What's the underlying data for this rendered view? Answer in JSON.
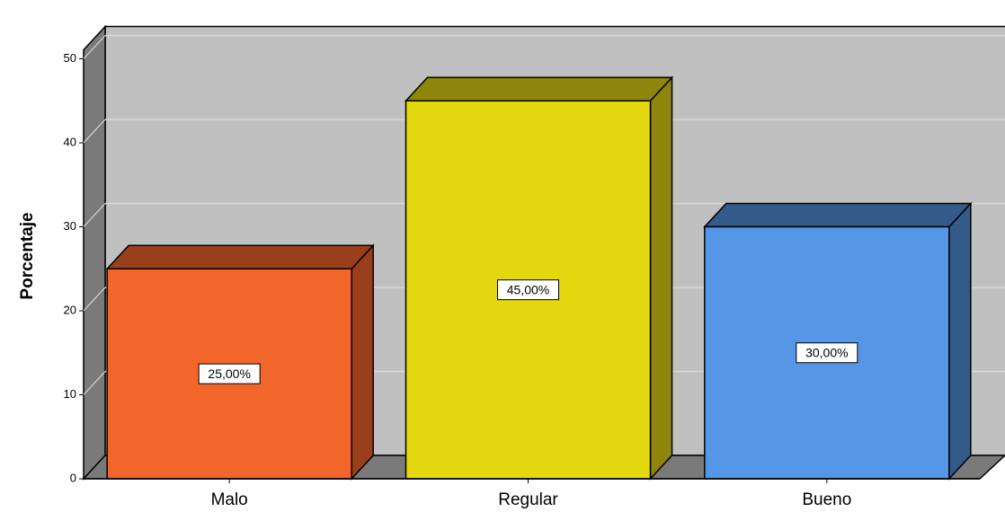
{
  "chart_data": {
    "type": "bar",
    "categories": [
      "Malo",
      "Regular",
      "Bueno"
    ],
    "values": [
      25,
      45,
      30
    ],
    "data_labels": [
      "25,00%",
      "45,00%",
      "30,00%"
    ],
    "ylabel": "Porcentaje",
    "xlabel": "",
    "ylim": [
      0,
      50
    ],
    "yticks": [
      "0",
      "10",
      "20",
      "30",
      "40",
      "50"
    ],
    "style": "3d",
    "grid": true,
    "colors": {
      "bars": [
        "#f2662b",
        "#e3d80e",
        "#5596e6"
      ],
      "bar_tops": [
        "#9a3f1b",
        "#8d860a",
        "#345a8a"
      ],
      "bar_sides": [
        "#9a3f1b",
        "#8d860a",
        "#345a8a"
      ],
      "back_wall": "#c0c0c0",
      "side_wall": "#7a7a7a",
      "floor": "#7a7a7a",
      "gridline": "#d8d8d8"
    }
  }
}
